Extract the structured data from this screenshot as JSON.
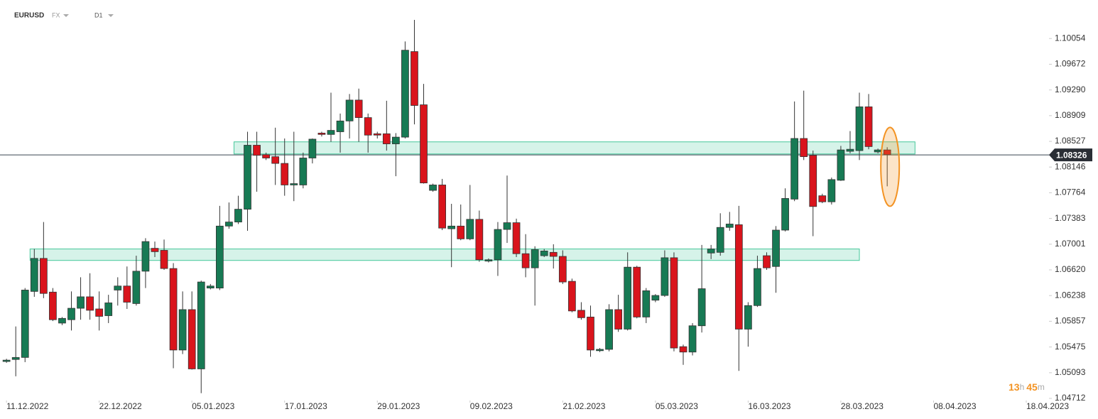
{
  "header": {
    "symbol": "EURUSD",
    "market": "FX",
    "timeframe": "D1"
  },
  "countdown": {
    "hours": "13",
    "hours_unit": "h",
    "minutes": "45",
    "minutes_unit": "m"
  },
  "chart_data": {
    "type": "candlestick",
    "up_color": "#177a54",
    "down_color": "#d9141c",
    "zone_color": "#34c291",
    "highlight_color": "#f39323",
    "last_price": 1.08326,
    "xlim": [
      -0.7,
      112.3
    ],
    "xticks": [
      {
        "value": 0,
        "label": "11.12.2022"
      },
      {
        "value": 10,
        "label": "22.12.2022"
      },
      {
        "value": 20,
        "label": "05.01.2023"
      },
      {
        "value": 30,
        "label": "17.01.2023"
      },
      {
        "value": 40,
        "label": "29.01.2023"
      },
      {
        "value": 50,
        "label": "09.02.2023"
      },
      {
        "value": 60,
        "label": "21.02.2023"
      },
      {
        "value": 70,
        "label": "05.03.2023"
      },
      {
        "value": 80,
        "label": "16.03.2023"
      },
      {
        "value": 90,
        "label": "28.03.2023"
      },
      {
        "value": 100,
        "label": "08.04.2023"
      },
      {
        "value": 110,
        "label": "18.04.2023"
      }
    ],
    "ylim": [
      1.04712,
      1.1052
    ],
    "yticks": [
      1.10054,
      1.09672,
      {
        "value": 1.0929,
        "label": "1.09290"
      },
      1.08909,
      1.08527,
      1.08146,
      1.07764,
      1.07383,
      1.07001,
      {
        "value": 1.0662,
        "label": "1.06620"
      },
      1.06238,
      1.05857,
      1.05475,
      1.05093,
      1.04712
    ],
    "zones": [
      {
        "x": [
          25,
          98
        ],
        "y": [
          1.0834,
          1.0852
        ]
      },
      {
        "x": [
          3,
          92
        ],
        "y": [
          1.0676,
          1.0693
        ]
      }
    ],
    "ohlc": [
      [
        1.0526,
        1.053,
        1.0524,
        1.0528
      ],
      [
        1.0529,
        1.0578,
        1.0504,
        1.0532
      ],
      [
        1.0532,
        1.0635,
        1.0525,
        1.0632
      ],
      [
        1.063,
        1.0693,
        1.0622,
        1.0679
      ],
      [
        1.0679,
        1.0733,
        1.062,
        1.0627
      ],
      [
        1.0629,
        1.0635,
        1.0586,
        1.0588
      ],
      [
        1.0583,
        1.0592,
        1.058,
        1.059
      ],
      [
        1.0588,
        1.063,
        1.0572,
        1.0605
      ],
      [
        1.0605,
        1.0651,
        1.0588,
        1.0622
      ],
      [
        1.0622,
        1.0657,
        1.0588,
        1.0602
      ],
      [
        1.0604,
        1.063,
        1.0572,
        1.0593
      ],
      [
        1.0594,
        1.0625,
        1.0583,
        1.0613
      ],
      [
        1.0632,
        1.0651,
        1.0609,
        1.0638
      ],
      [
        1.0638,
        1.0667,
        1.0604,
        1.0614
      ],
      [
        1.0612,
        1.0683,
        1.0609,
        1.066
      ],
      [
        1.066,
        1.0709,
        1.0635,
        1.0704
      ],
      [
        1.0694,
        1.0704,
        1.0681,
        1.0689
      ],
      [
        1.0691,
        1.0707,
        1.0662,
        1.0664
      ],
      [
        1.0664,
        1.0672,
        1.0516,
        1.0543
      ],
      [
        1.0543,
        1.063,
        1.0537,
        1.0603
      ],
      [
        1.0603,
        1.063,
        1.0514,
        1.0515
      ],
      [
        1.0515,
        1.0646,
        1.0479,
        1.0644
      ],
      [
        1.0635,
        1.0641,
        1.0633,
        1.0638
      ],
      [
        1.0635,
        1.0757,
        1.0632,
        1.0727
      ],
      [
        1.0727,
        1.0762,
        1.0723,
        1.0733
      ],
      [
        1.0733,
        1.0772,
        1.073,
        1.0752
      ],
      [
        1.0752,
        1.0867,
        1.072,
        1.0847
      ],
      [
        1.0847,
        1.0867,
        1.0778,
        1.0832
      ],
      [
        1.0833,
        1.0836,
        1.0825,
        1.0828
      ],
      [
        1.083,
        1.0873,
        1.0788,
        1.082
      ],
      [
        1.082,
        1.0857,
        1.0772,
        1.0788
      ],
      [
        1.0788,
        1.0867,
        1.0764,
        1.079
      ],
      [
        1.0788,
        1.0836,
        1.0783,
        1.0828
      ],
      [
        1.0828,
        1.0857,
        1.082,
        1.0856
      ],
      [
        1.0865,
        1.0867,
        1.086,
        1.0863
      ],
      [
        1.0863,
        1.0925,
        1.0852,
        1.0869
      ],
      [
        1.0867,
        1.0894,
        1.0836,
        1.0883
      ],
      [
        1.0883,
        1.0923,
        1.0857,
        1.0914
      ],
      [
        1.0914,
        1.0931,
        1.0852,
        1.0888
      ],
      [
        1.0888,
        1.0894,
        1.0836,
        1.0862
      ],
      [
        1.0864,
        1.0867,
        1.0857,
        1.0862
      ],
      [
        1.0864,
        1.0913,
        1.0839,
        1.0849
      ],
      [
        1.0849,
        1.0865,
        1.0801,
        1.0859
      ],
      [
        1.0859,
        1.1001,
        1.0857,
        1.0988
      ],
      [
        1.0986,
        1.1033,
        1.0878,
        1.0906
      ],
      [
        1.0907,
        1.0938,
        1.079,
        1.0791
      ],
      [
        1.078,
        1.079,
        1.0778,
        1.0788
      ],
      [
        1.0788,
        1.0797,
        1.0721,
        1.0724
      ],
      [
        1.0723,
        1.076,
        1.0666,
        1.0727
      ],
      [
        1.0727,
        1.0759,
        1.0706,
        1.0708
      ],
      [
        1.0708,
        1.0788,
        1.0706,
        1.0737
      ],
      [
        1.0737,
        1.075,
        1.0674,
        1.0677
      ],
      [
        1.0675,
        1.0679,
        1.0673,
        1.0677
      ],
      [
        1.0677,
        1.0733,
        1.0653,
        1.0722
      ],
      [
        1.0722,
        1.0802,
        1.0702,
        1.0732
      ],
      [
        1.0732,
        1.0738,
        1.0681,
        1.0686
      ],
      [
        1.0686,
        1.0715,
        1.0651,
        1.0665
      ],
      [
        1.0665,
        1.0697,
        1.0609,
        1.0692
      ],
      [
        1.0683,
        1.0693,
        1.0681,
        1.069
      ],
      [
        1.0688,
        1.07,
        1.0664,
        1.0682
      ],
      [
        1.0682,
        1.0691,
        1.0641,
        1.0644
      ],
      [
        1.0645,
        1.0649,
        1.0599,
        1.0601
      ],
      [
        1.0602,
        1.0614,
        1.0588,
        1.0591
      ],
      [
        1.0592,
        1.0609,
        1.0533,
        1.0543
      ],
      [
        1.0542,
        1.0546,
        1.054,
        1.0544
      ],
      [
        1.0544,
        1.0611,
        1.0541,
        1.0603
      ],
      [
        1.0603,
        1.0625,
        1.057,
        1.0574
      ],
      [
        1.0574,
        1.0688,
        1.0572,
        1.0666
      ],
      [
        1.0666,
        1.0668,
        1.059,
        1.0592
      ],
      [
        1.0592,
        1.0635,
        1.0583,
        1.0631
      ],
      [
        1.0617,
        1.0626,
        1.0614,
        1.0624
      ],
      [
        1.0624,
        1.0691,
        1.0622,
        1.068
      ],
      [
        1.068,
        1.0688,
        1.0541,
        1.0546
      ],
      [
        1.0548,
        1.0551,
        1.0521,
        1.054
      ],
      [
        1.054,
        1.0583,
        1.0535,
        1.0579
      ],
      [
        1.0579,
        1.0699,
        1.0569,
        1.0634
      ],
      [
        1.0687,
        1.0699,
        1.0678,
        1.0693
      ],
      [
        1.0688,
        1.0746,
        1.0683,
        1.0725
      ],
      [
        1.0725,
        1.0748,
        1.072,
        1.073
      ],
      [
        1.0729,
        1.0757,
        1.0512,
        1.0574
      ],
      [
        1.0574,
        1.0614,
        1.0548,
        1.0609
      ],
      [
        1.0609,
        1.0683,
        1.0607,
        1.0664
      ],
      [
        1.0683,
        1.0688,
        1.0662,
        1.0665
      ],
      [
        1.0667,
        1.0727,
        1.0628,
        1.0721
      ],
      [
        1.0721,
        1.0783,
        1.0719,
        1.0768
      ],
      [
        1.0767,
        1.0912,
        1.0764,
        1.0857
      ],
      [
        1.0857,
        1.0928,
        1.0825,
        1.083
      ],
      [
        1.0832,
        1.0839,
        1.0712,
        1.0756
      ],
      [
        1.0772,
        1.0775,
        1.0761,
        1.0763
      ],
      [
        1.0763,
        1.0799,
        1.0759,
        1.0796
      ],
      [
        1.0795,
        1.0846,
        1.0794,
        1.084
      ],
      [
        1.0838,
        1.0868,
        1.0835,
        1.0841
      ],
      [
        1.0839,
        1.0925,
        1.0825,
        1.0904
      ],
      [
        1.0904,
        1.0923,
        1.0841,
        1.0845
      ],
      [
        1.0837,
        1.0842,
        1.0835,
        1.084
      ],
      [
        1.084,
        1.0844,
        1.0786,
        1.0833
      ]
    ]
  }
}
